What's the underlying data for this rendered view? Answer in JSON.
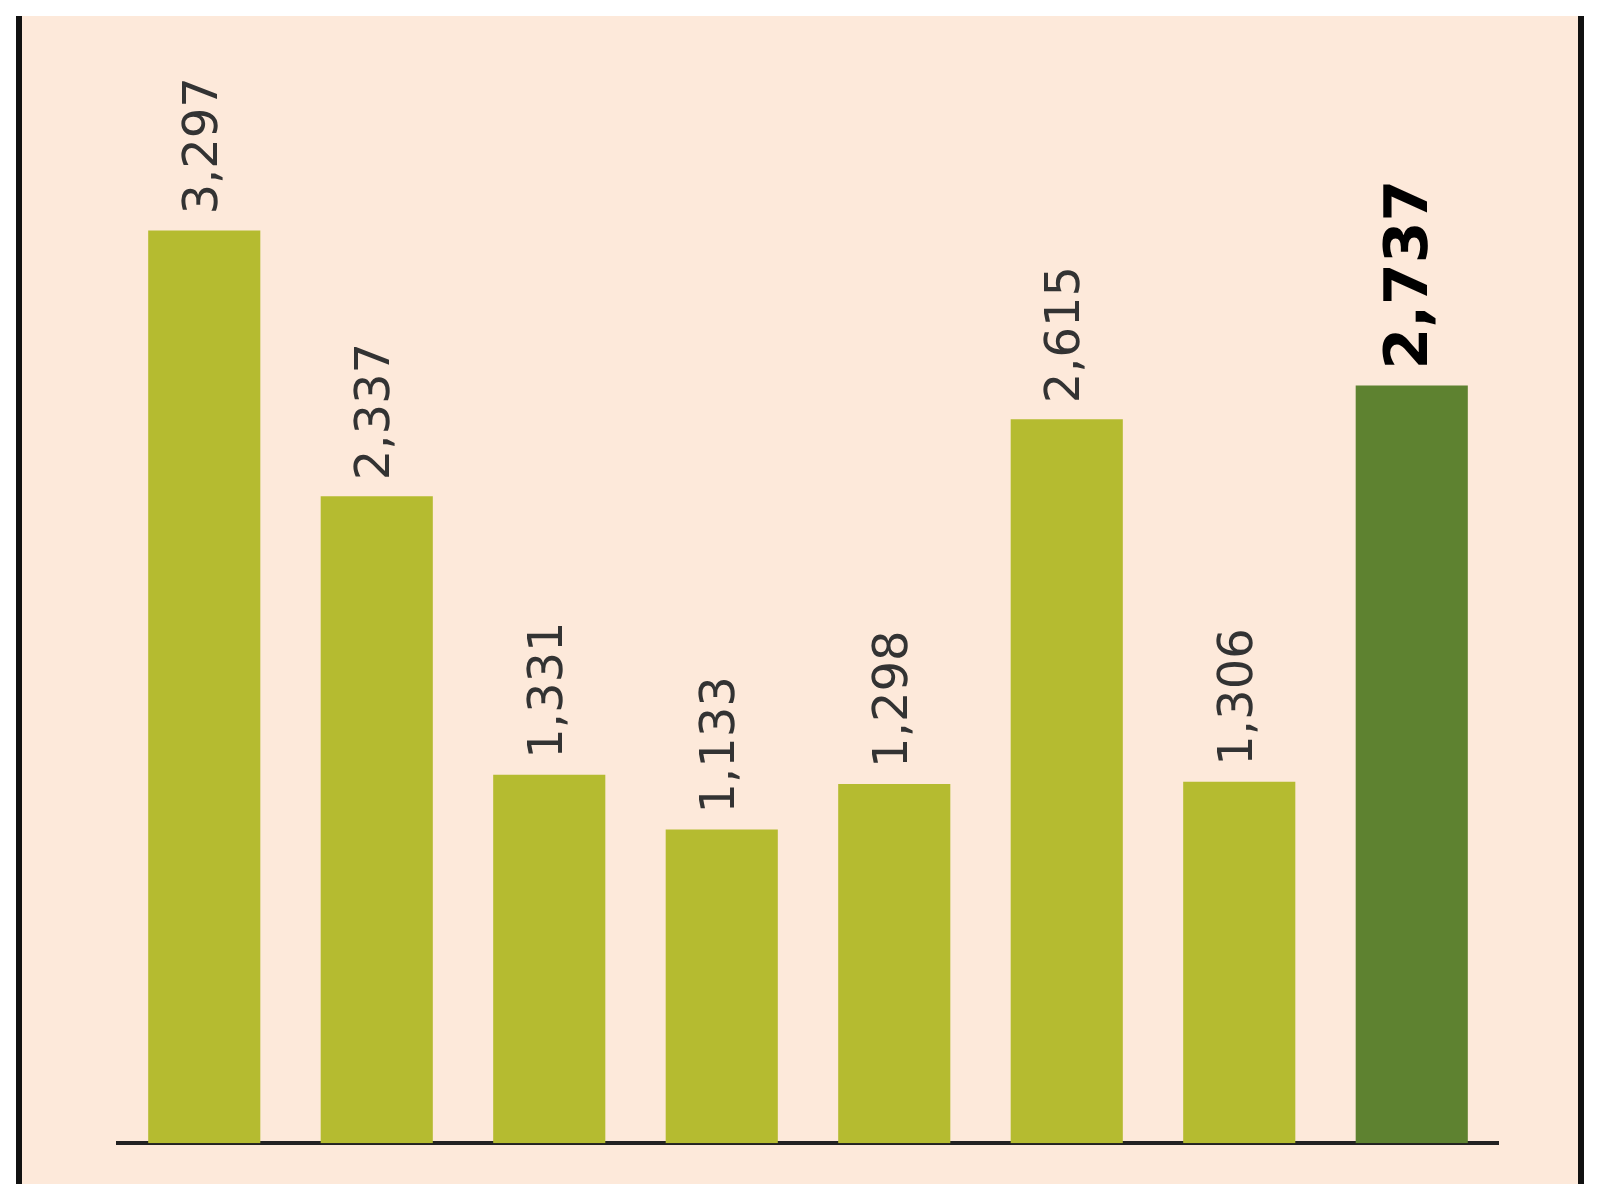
{
  "chart_data": {
    "type": "bar",
    "categories": [
      null,
      null,
      null,
      null,
      null,
      null,
      null,
      null
    ],
    "values": [
      3297,
      2337,
      1331,
      1133,
      1298,
      2615,
      1306,
      2737
    ],
    "value_labels": [
      "3,297",
      "2,337",
      "1,331",
      "1,133",
      "1,298",
      "2,615",
      "1,306",
      "2,737"
    ],
    "colors": [
      "#b5bb30",
      "#b5bb30",
      "#b5bb30",
      "#b5bb30",
      "#b5bb30",
      "#b5bb30",
      "#b5bb30",
      "#5e8230"
    ],
    "legend": false
  }
}
